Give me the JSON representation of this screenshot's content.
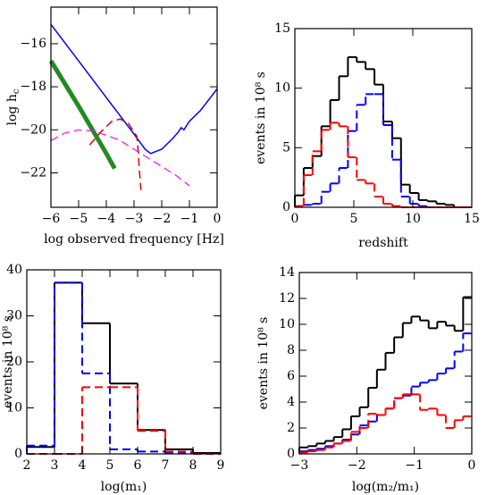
{
  "chart_data": [
    {
      "type": "line",
      "xlabel": "log observed frequency [Hz]",
      "ylabel": {
        "main": "log h",
        "sub": "c"
      },
      "xlim": [
        -6,
        0
      ],
      "xticks": [
        {
          "value": -6,
          "label": "−6"
        },
        {
          "value": -5,
          "label": "−5"
        },
        {
          "value": -4,
          "label": "−4"
        },
        {
          "value": -3,
          "label": "−3"
        },
        {
          "value": -2,
          "label": "−2"
        },
        {
          "value": -1,
          "label": "−1"
        },
        0
      ],
      "ylim": [
        -23.6,
        -14.3
      ],
      "yticks": [
        {
          "value": -22,
          "label": "−22"
        },
        {
          "value": -20,
          "label": "−20"
        },
        {
          "value": -18,
          "label": "−18"
        },
        {
          "value": -16,
          "label": "−16"
        }
      ],
      "series": [
        {
          "color": "#0000ff",
          "style": "solid",
          "linewidth": 1.5,
          "x": [
            -6,
            -5,
            -4,
            -3,
            -2.6,
            -2.4,
            -2,
            -1.6,
            -1.4,
            -1.3,
            -1.2,
            -1,
            -0.6,
            -0.3,
            0
          ],
          "values": [
            -15.1,
            -16.8,
            -18.5,
            -20.2,
            -20.9,
            -21.1,
            -20.9,
            -20.4,
            -20.1,
            -19.9,
            -20.0,
            -19.6,
            -19.1,
            -18.6,
            -18.1
          ]
        },
        {
          "color": "#228b22",
          "style": "solid",
          "linewidth": 5,
          "x": [
            -6,
            -5,
            -4,
            -3.7
          ],
          "values": [
            -16.8,
            -18.9,
            -21.1,
            -21.8
          ]
        },
        {
          "color": "#e00000",
          "style": "dashed",
          "linewidth": 1.5,
          "x": [
            -4.6,
            -4.2,
            -3.8,
            -3.5,
            -3.2,
            -2.9,
            -2.85,
            -2.8,
            -2.75
          ],
          "values": [
            -20.7,
            -20.1,
            -19.6,
            -19.5,
            -19.7,
            -20.3,
            -21.0,
            -22.0,
            -22.8
          ]
        },
        {
          "color": "#ff00ff",
          "style": "dashed",
          "linewidth": 1.2,
          "x": [
            -6,
            -5.5,
            -5,
            -4.5,
            -4,
            -3.5,
            -3,
            -2.5,
            -2,
            -1.5,
            -1
          ],
          "values": [
            -20.5,
            -20.15,
            -20.0,
            -20.05,
            -20.25,
            -20.5,
            -20.9,
            -21.3,
            -21.7,
            -22.1,
            -22.6
          ]
        }
      ]
    },
    {
      "type": "histogram",
      "xlabel": "redshift",
      "ylabel": "events in 10⁸ s",
      "xlim": [
        0,
        15
      ],
      "xticks": [
        0,
        5,
        10,
        15
      ],
      "ylim": [
        0,
        15
      ],
      "yticks": [
        0,
        5,
        10,
        15
      ],
      "bins": [
        0,
        0.75,
        1.5,
        2.25,
        3,
        3.75,
        4.5,
        5.25,
        6,
        6.75,
        7.5,
        8.25,
        9,
        9.75,
        10.5,
        11.25,
        12,
        12.75,
        13.5,
        14.25,
        15
      ],
      "series": [
        {
          "color": "#000000",
          "style": "solid",
          "values": [
            1.0,
            3.3,
            4.3,
            6.8,
            9.0,
            11.0,
            12.6,
            12.2,
            11.6,
            10.3,
            7.2,
            5.8,
            1.9,
            1.2,
            0.6,
            0.5,
            0.3,
            0.2,
            0,
            0
          ]
        },
        {
          "color": "#0000ff",
          "style": "dashed",
          "values": [
            0.1,
            0.2,
            0.3,
            1.3,
            2.0,
            3.3,
            6.4,
            8.6,
            9.5,
            9.5,
            6.9,
            4.0,
            0.9,
            0.3,
            0.1,
            0,
            0,
            0,
            0,
            0
          ]
        },
        {
          "color": "#ff0000",
          "style": "dashed",
          "values": [
            0.1,
            2.7,
            4.7,
            6.5,
            7.1,
            6.8,
            4.2,
            2.3,
            2.0,
            0.9,
            0.3,
            0.1,
            0,
            0,
            0,
            0,
            0,
            0,
            0,
            0
          ]
        }
      ]
    },
    {
      "type": "histogram",
      "xlabel": "log(m₁)",
      "ylabel": "events in 10⁸ s",
      "xlim": [
        2,
        9
      ],
      "xticks": [
        2,
        3,
        4,
        5,
        6,
        7,
        8,
        9
      ],
      "ylim": [
        0,
        40
      ],
      "yticks": [
        0,
        10,
        20,
        30,
        40
      ],
      "bins": [
        2,
        3,
        4,
        5,
        6,
        7,
        8,
        9
      ],
      "series": [
        {
          "color": "#000000",
          "style": "solid",
          "values": [
            1.5,
            37.2,
            28.4,
            15.3,
            5.2,
            1.0,
            0.2
          ]
        },
        {
          "color": "#0000ff",
          "style": "dashed",
          "values": [
            1.8,
            37.2,
            17.5,
            1.0,
            0.5,
            0.2,
            0
          ]
        },
        {
          "color": "#ff0000",
          "style": "dashed",
          "values": [
            0,
            0,
            14.5,
            14.5,
            5.0,
            0.5,
            0
          ]
        }
      ]
    },
    {
      "type": "histogram",
      "xlabel": "log(m₂/m₁)",
      "ylabel": "events in 10⁸ s",
      "xlim": [
        -3,
        0
      ],
      "xticks": [
        {
          "value": -3,
          "label": "−3"
        },
        {
          "value": -2,
          "label": "−2"
        },
        {
          "value": -1,
          "label": "−1"
        },
        0
      ],
      "ylim": [
        0,
        14
      ],
      "yticks": [
        0,
        2,
        4,
        6,
        8,
        10,
        12,
        14
      ],
      "bins": [
        -3,
        -2.85,
        -2.7,
        -2.55,
        -2.4,
        -2.25,
        -2.1,
        -1.95,
        -1.8,
        -1.65,
        -1.5,
        -1.35,
        -1.2,
        -1.05,
        -0.9,
        -0.75,
        -0.6,
        -0.45,
        -0.3,
        -0.15,
        0
      ],
      "series": [
        {
          "color": "#000000",
          "style": "solid",
          "values": [
            0.5,
            0.6,
            0.8,
            1.0,
            1.3,
            1.9,
            2.9,
            3.6,
            5.1,
            6.5,
            7.8,
            9.0,
            10.1,
            10.6,
            10.3,
            9.7,
            10.2,
            9.9,
            9.5,
            12.1
          ]
        },
        {
          "color": "#0000ff",
          "style": "dashed",
          "values": [
            0.2,
            0.3,
            0.4,
            0.6,
            0.8,
            1.1,
            1.5,
            2.2,
            2.5,
            3.0,
            3.5,
            4.3,
            4.5,
            5.2,
            5.5,
            5.7,
            6.2,
            6.6,
            7.9,
            9.3
          ]
        },
        {
          "color": "#ff0000",
          "style": "dashed",
          "values": [
            0.1,
            0.2,
            0.3,
            0.5,
            0.8,
            1.0,
            1.7,
            2.0,
            3.1,
            3.0,
            3.5,
            4.3,
            4.6,
            4.6,
            3.4,
            3.5,
            3.0,
            2.0,
            2.6,
            2.9
          ]
        }
      ]
    }
  ]
}
